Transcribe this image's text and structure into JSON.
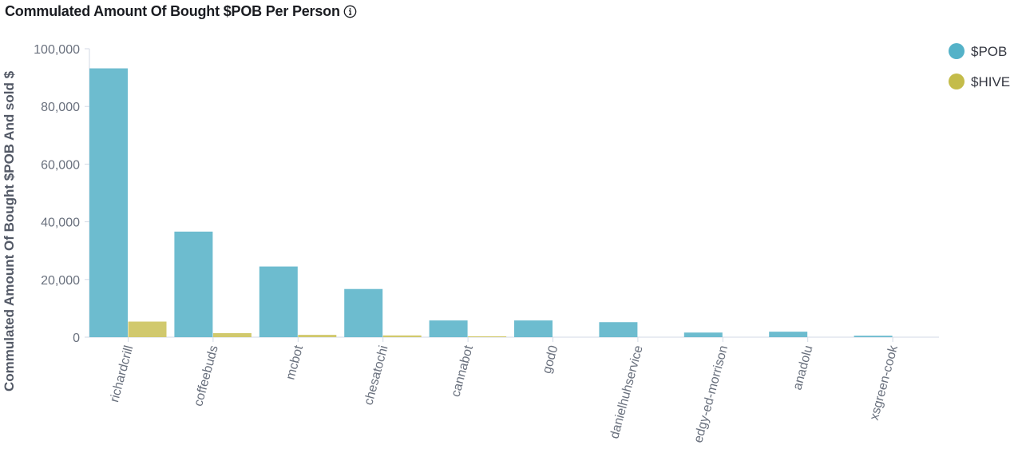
{
  "title": "Commulated Amount Of Bought $POB Per Person",
  "chart_data": {
    "type": "bar",
    "title": "Commulated Amount Of Bought $POB Per Person",
    "xlabel": "",
    "ylabel": "Commulated Amount Of Bought $POB And sold $",
    "ylim": [
      0,
      100000
    ],
    "yticks": [
      0,
      20000,
      40000,
      60000,
      80000,
      100000
    ],
    "ytick_labels": [
      "0",
      "20,000",
      "40,000",
      "60,000",
      "80,000",
      "100,000"
    ],
    "grid": false,
    "legend_position": "top-right",
    "categories": [
      "richardcrill",
      "coffeebuds",
      "mcbot",
      "chesatochi",
      "cannabot",
      "god0",
      "danielhuhservice",
      "edgy-ed-morrison",
      "anadolu",
      "xsgreen-cook"
    ],
    "series": [
      {
        "name": "$POB",
        "color": "#6dbccf",
        "legend_color": "#54b2c8",
        "values": [
          93200,
          36600,
          24500,
          16700,
          5800,
          5800,
          5200,
          1600,
          1900,
          500
        ]
      },
      {
        "name": "$HIVE",
        "color": "#d1c96d",
        "legend_color": "#c4bc4a",
        "values": [
          5400,
          1400,
          800,
          600,
          300,
          0,
          0,
          0,
          0,
          0
        ]
      }
    ]
  }
}
